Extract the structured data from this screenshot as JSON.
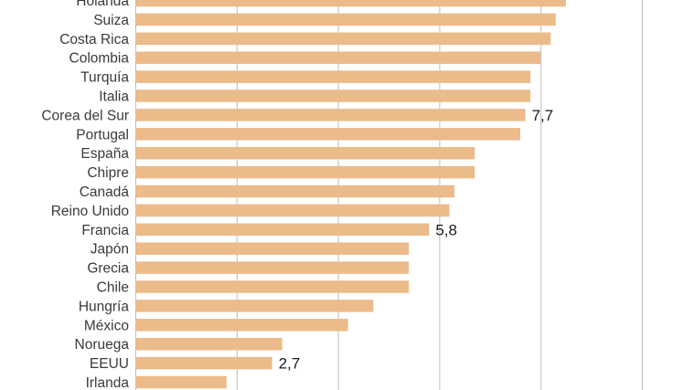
{
  "chart_data": {
    "type": "bar",
    "orientation": "horizontal",
    "categories": [
      "Holanda",
      "Suiza",
      "Costa Rica",
      "Colombia",
      "Turquía",
      "Italia",
      "Corea del Sur",
      "Portugal",
      "España",
      "Chipre",
      "Canadá",
      "Reino Unido",
      "Francia",
      "Japón",
      "Grecia",
      "Chile",
      "Hungría",
      "México",
      "Noruega",
      "EEUU",
      "Irlanda"
    ],
    "values": [
      8.5,
      8.3,
      8.2,
      8.0,
      7.8,
      7.8,
      7.7,
      7.6,
      6.7,
      6.7,
      6.3,
      6.2,
      5.8,
      5.4,
      5.4,
      5.4,
      4.7,
      4.2,
      2.9,
      2.7,
      1.8
    ],
    "data_labels": [
      {
        "category": "Corea del Sur",
        "text": "7,7"
      },
      {
        "category": "Francia",
        "text": "5,8"
      },
      {
        "category": "EEUU",
        "text": "2,7"
      }
    ],
    "xlim": [
      0,
      10
    ],
    "grid": true,
    "bar_color": "#ebbb8a"
  }
}
